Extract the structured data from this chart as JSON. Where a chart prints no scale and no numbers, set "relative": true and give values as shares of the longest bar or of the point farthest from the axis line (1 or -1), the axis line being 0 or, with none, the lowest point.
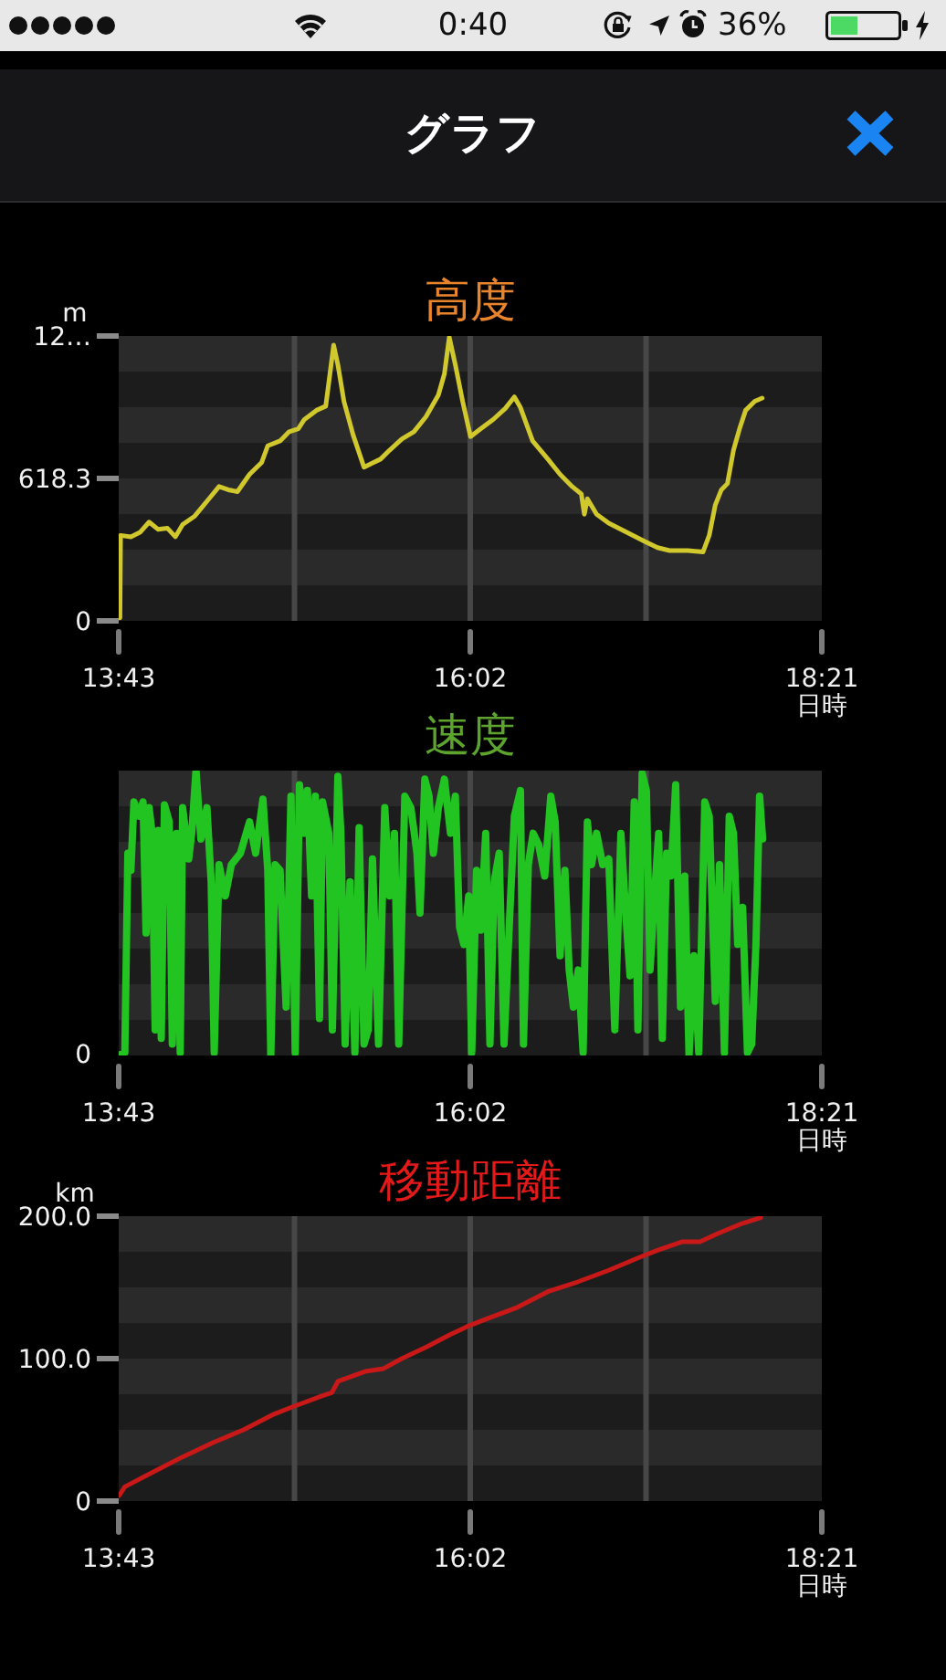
{
  "chart_data": [
    {
      "type": "other",
      "title": "グラフ",
      "annotations": [
        "0:40",
        "36%"
      ]
    },
    {
      "type": "line",
      "title": "高度",
      "ylabel": "m",
      "xlabel": "日時",
      "color": "#d0c82c",
      "x": [
        13.725,
        13.729,
        13.797,
        13.857,
        13.917,
        13.977,
        14.038,
        14.09,
        14.138,
        14.218,
        14.318,
        14.378,
        14.439,
        14.499,
        14.579,
        14.659,
        14.699,
        14.78,
        14.84,
        14.9,
        14.94,
        15.02,
        15.081,
        15.101,
        15.133,
        15.161,
        15.201,
        15.261,
        15.333,
        15.381,
        15.442,
        15.502,
        15.582,
        15.662,
        15.742,
        15.823,
        15.863,
        15.895,
        15.935,
        15.983,
        16.035,
        16.103,
        16.184,
        16.264,
        16.324,
        16.364,
        16.444,
        16.545,
        16.625,
        16.705,
        16.765,
        16.785,
        16.805,
        16.866,
        16.946,
        17.026,
        17.106,
        17.186,
        17.267,
        17.347,
        17.467,
        17.567,
        17.608,
        17.648,
        17.688,
        17.728,
        17.768,
        17.808,
        17.848,
        17.908,
        17.957
      ],
      "values": [
        13,
        371,
        365,
        384,
        429,
        397,
        402,
        365,
        418,
        455,
        535,
        583,
        569,
        561,
        636,
        688,
        760,
        781,
        821,
        834,
        874,
        914,
        932,
        1033,
        1197,
        1112,
        953,
        808,
        667,
        683,
        702,
        741,
        789,
        821,
        887,
        980,
        1072,
        1231,
        1112,
        953,
        800,
        834,
        874,
        922,
        972,
        926,
        781,
        702,
        636,
        583,
        551,
        463,
        530,
        463,
        424,
        397,
        371,
        344,
        318,
        305,
        305,
        299,
        371,
        503,
        569,
        596,
        741,
        834,
        914,
        953,
        967
      ],
      "xlim": [
        13.7167,
        18.35
      ],
      "xticks": [
        {
          "value": 13.7167,
          "label": "13:43"
        },
        {
          "value": 14.875,
          "label": null
        },
        {
          "value": 16.0333,
          "label": "16:02"
        },
        {
          "value": 17.1917,
          "label": null
        },
        {
          "value": 18.35,
          "label": "18:21"
        }
      ],
      "ylim": [
        0,
        1236.6
      ],
      "yticks": [
        {
          "value": 0,
          "label": "0"
        },
        618.3,
        {
          "value": 1236.6,
          "label": "12…"
        }
      ],
      "grid": "x"
    },
    {
      "type": "line",
      "title": "速度",
      "xlabel": "日時",
      "color": "#22c422",
      "relative": true,
      "annotations": [
        "0"
      ],
      "x": [
        13.717,
        13.757,
        13.777,
        13.797,
        13.817,
        13.849,
        13.877,
        13.897,
        13.917,
        13.937,
        13.957,
        13.977,
        13.997,
        14.018,
        14.05,
        14.07,
        14.098,
        14.122,
        14.138,
        14.178,
        14.198,
        14.226,
        14.258,
        14.298,
        14.326,
        14.346,
        14.378,
        14.419,
        14.459,
        14.519,
        14.579,
        14.619,
        14.667,
        14.699,
        14.719,
        14.747,
        14.78,
        14.82,
        14.852,
        14.88,
        14.908,
        14.94,
        14.96,
        14.988,
        15.012,
        15.04,
        15.06,
        15.101,
        15.125,
        15.161,
        15.181,
        15.209,
        15.241,
        15.273,
        15.301,
        15.333,
        15.361,
        15.389,
        15.429,
        15.47,
        15.502,
        15.534,
        15.562,
        15.602,
        15.642,
        15.682,
        15.702,
        15.734,
        15.762,
        15.79,
        15.823,
        15.863,
        15.903,
        15.935,
        15.963,
        15.991,
        16.023,
        16.043,
        16.075,
        16.103,
        16.135,
        16.163,
        16.191,
        16.224,
        16.256,
        16.296,
        16.324,
        16.364,
        16.384,
        16.416,
        16.448,
        16.484,
        16.524,
        16.564,
        16.593,
        16.625,
        16.657,
        16.685,
        16.713,
        16.745,
        16.777,
        16.805,
        16.833,
        16.866,
        16.906,
        16.946,
        16.986,
        17.026,
        17.058,
        17.086,
        17.114,
        17.138,
        17.166,
        17.194,
        17.218,
        17.247,
        17.275,
        17.299,
        17.327,
        17.355,
        17.387,
        17.419,
        17.447,
        17.475,
        17.507,
        17.539,
        17.579,
        17.608,
        17.648,
        17.676,
        17.708,
        17.74,
        17.768,
        17.796,
        17.828,
        17.86,
        17.888,
        17.916,
        17.94,
        17.96
      ],
      "values": [
        0,
        0.01,
        0.71,
        0.65,
        0.89,
        0.84,
        0.89,
        0.43,
        0.87,
        0.78,
        0.09,
        0.79,
        0.06,
        0.88,
        0.82,
        0.04,
        0.78,
        0.01,
        0.87,
        0.69,
        0.78,
        1,
        0.76,
        0.87,
        0.61,
        0.01,
        0.67,
        0.56,
        0.67,
        0.71,
        0.82,
        0.71,
        0.9,
        0.65,
        0,
        0.67,
        0.65,
        0.17,
        0.91,
        0.01,
        0.95,
        0.78,
        0.93,
        0.56,
        0.91,
        0.13,
        0.89,
        0.78,
        0.09,
        0.98,
        0.78,
        0.04,
        0.61,
        0.01,
        0.8,
        0.04,
        0.09,
        0.69,
        0.04,
        0.87,
        0.56,
        0.78,
        0.04,
        0.91,
        0.87,
        0.71,
        0.5,
        0.97,
        0.91,
        0.71,
        0.87,
        0.97,
        0.78,
        0.91,
        0.45,
        0.39,
        0.56,
        0.01,
        0.65,
        0.44,
        0.78,
        0.04,
        0.61,
        0.71,
        0.04,
        0.52,
        0.84,
        0.93,
        0.04,
        0.67,
        0.78,
        0.74,
        0.63,
        0.91,
        0.82,
        0.35,
        0.65,
        0.3,
        0.17,
        0.3,
        0.01,
        0.82,
        0.67,
        0.78,
        0.67,
        0.69,
        0.09,
        0.78,
        0.5,
        0.28,
        0.89,
        0.09,
        0.99,
        0.93,
        0.3,
        0.56,
        0.78,
        0.06,
        0.71,
        0.63,
        0.95,
        0.17,
        0.63,
        0,
        0.35,
        0.01,
        0.89,
        0.84,
        0.19,
        0.67,
        0.01,
        0.84,
        0.78,
        0.39,
        0.52,
        0.01,
        0.04,
        0.39,
        0.91,
        0.76
      ],
      "xlim": [
        13.7167,
        18.35
      ],
      "xticks": [
        {
          "value": 13.7167,
          "label": "13:43"
        },
        {
          "value": 14.875,
          "label": null
        },
        {
          "value": 16.0333,
          "label": "16:02"
        },
        {
          "value": 17.1917,
          "label": null
        },
        {
          "value": 18.35,
          "label": "18:21"
        }
      ],
      "grid": "x"
    },
    {
      "type": "line",
      "title": "移動距離",
      "ylabel": "km",
      "xlabel": "日時",
      "color": "#c81818",
      "x": [
        13.721,
        13.757,
        13.937,
        14.138,
        14.338,
        14.539,
        14.74,
        14.86,
        15.06,
        15.121,
        15.161,
        15.341,
        15.462,
        15.582,
        15.742,
        15.903,
        16.023,
        16.143,
        16.344,
        16.544,
        16.745,
        16.946,
        17.146,
        17.267,
        17.427,
        17.547,
        17.668,
        17.828,
        17.948
      ],
      "values": [
        4,
        10,
        20,
        31,
        41,
        50,
        61,
        66,
        74,
        76,
        84,
        91,
        93,
        100,
        108,
        117,
        123,
        128,
        136,
        147,
        154,
        162,
        171,
        176,
        182,
        182,
        188,
        195,
        199
      ],
      "xlim": [
        13.7167,
        18.35
      ],
      "xticks": [
        {
          "value": 13.7167,
          "label": "13:43"
        },
        {
          "value": 14.875,
          "label": null
        },
        {
          "value": 16.0333,
          "label": "16:02"
        },
        {
          "value": 17.1917,
          "label": null
        },
        {
          "value": 18.35,
          "label": "18:21"
        }
      ],
      "ylim": [
        0,
        200
      ],
      "yticks": [
        {
          "value": 0,
          "label": "0"
        },
        {
          "value": 100,
          "label": "100.0"
        },
        {
          "value": 200,
          "label": "200.0"
        }
      ],
      "grid": "x"
    }
  ]
}
